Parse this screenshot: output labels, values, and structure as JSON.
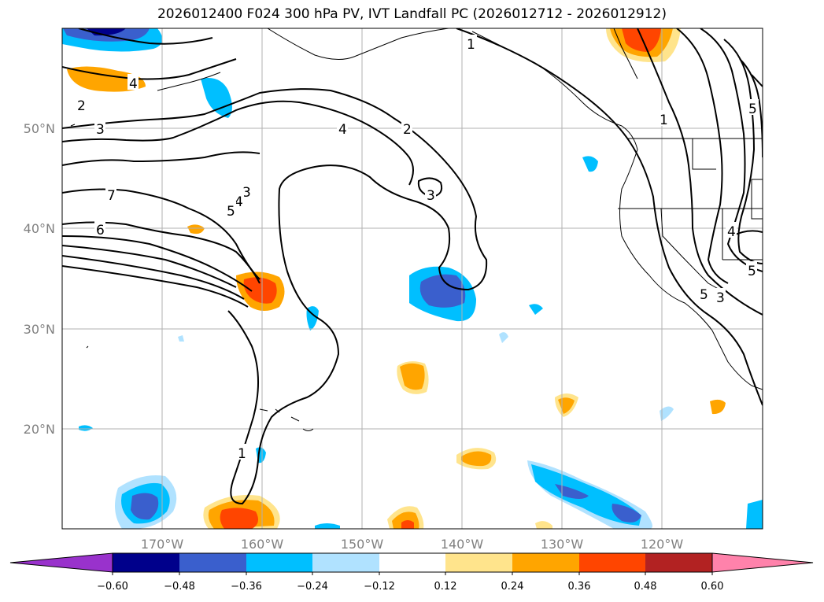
{
  "title": "2026012400 F024 300 hPa PV, IVT Landfall PC (2026012712 - 2026012912)",
  "lat_labels": [
    "50°N",
    "40°N",
    "30°N",
    "20°N"
  ],
  "lon_labels": [
    "170°W",
    "160°W",
    "150°W",
    "140°W",
    "130°W",
    "120°W"
  ],
  "contour_labels": [
    "1",
    "1",
    "1",
    "2",
    "2",
    "3",
    "3",
    "3",
    "4",
    "4",
    "4",
    "5",
    "5",
    "5",
    "6",
    "7",
    "3",
    "4",
    "5"
  ],
  "colorbar": {
    "ticks": [
      "−0.60",
      "−0.48",
      "−0.36",
      "−0.24",
      "−0.12",
      "0.12",
      "0.24",
      "0.36",
      "0.48",
      "0.60"
    ],
    "colors": [
      "#9932cc",
      "#00008b",
      "#3a5fcd",
      "#00bfff",
      "#b0e2ff",
      "#ffffff",
      "#ffe48c",
      "#ffa500",
      "#ff4500",
      "#b22222",
      "#ff82ab"
    ]
  }
}
